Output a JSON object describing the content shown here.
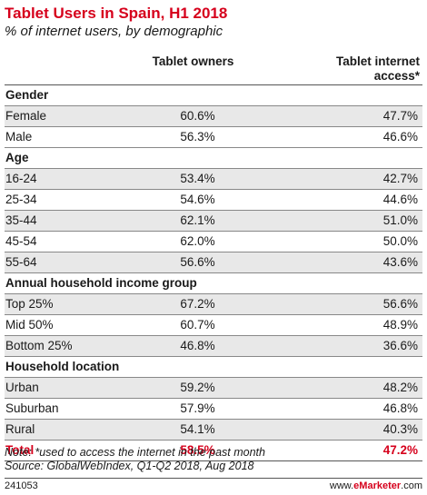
{
  "title": "Tablet Users in Spain, H1 2018",
  "subtitle": "% of internet users, by demographic",
  "columns": [
    "Tablet owners",
    "Tablet internet access*"
  ],
  "chart_data": {
    "type": "table",
    "title": "Tablet Users in Spain, H1 2018",
    "subtitle": "% of internet users, by demographic",
    "columns": [
      "Tablet owners",
      "Tablet internet access*"
    ],
    "rows": [
      {
        "label": "Gender",
        "group": true
      },
      {
        "label": "Female",
        "values": [
          "60.6%",
          "47.7%"
        ]
      },
      {
        "label": "Male",
        "values": [
          "56.3%",
          "46.6%"
        ]
      },
      {
        "label": "Age",
        "group": true
      },
      {
        "label": "16-24",
        "values": [
          "53.4%",
          "42.7%"
        ]
      },
      {
        "label": "25-34",
        "values": [
          "54.6%",
          "44.6%"
        ]
      },
      {
        "label": "35-44",
        "values": [
          "62.1%",
          "51.0%"
        ]
      },
      {
        "label": "45-54",
        "values": [
          "62.0%",
          "50.0%"
        ]
      },
      {
        "label": "55-64",
        "values": [
          "56.6%",
          "43.6%"
        ]
      },
      {
        "label": "Annual household income group",
        "group": true
      },
      {
        "label": "Top 25%",
        "values": [
          "67.2%",
          "56.6%"
        ]
      },
      {
        "label": "Mid 50%",
        "values": [
          "60.7%",
          "48.9%"
        ]
      },
      {
        "label": "Bottom 25%",
        "values": [
          "46.8%",
          "36.6%"
        ]
      },
      {
        "label": "Household location",
        "group": true
      },
      {
        "label": "Urban",
        "values": [
          "59.2%",
          "48.2%"
        ]
      },
      {
        "label": "Suburban",
        "values": [
          "57.9%",
          "46.8%"
        ]
      },
      {
        "label": "Rural",
        "values": [
          "54.1%",
          "40.3%"
        ]
      },
      {
        "label": "Total",
        "values": [
          "58.5%",
          "47.2%"
        ],
        "total": true
      }
    ]
  },
  "note": "Note: *used to access the internet in the past month",
  "source": "Source: GlobalWebIndex, Q1-Q2 2018, Aug 2018",
  "chart_id": "241053",
  "logo": {
    "prefix": "www.",
    "brand": "eMarketer",
    "suffix": ".com"
  },
  "colors": {
    "accent": "#d6001c",
    "stripe": "#e8e8e8"
  }
}
